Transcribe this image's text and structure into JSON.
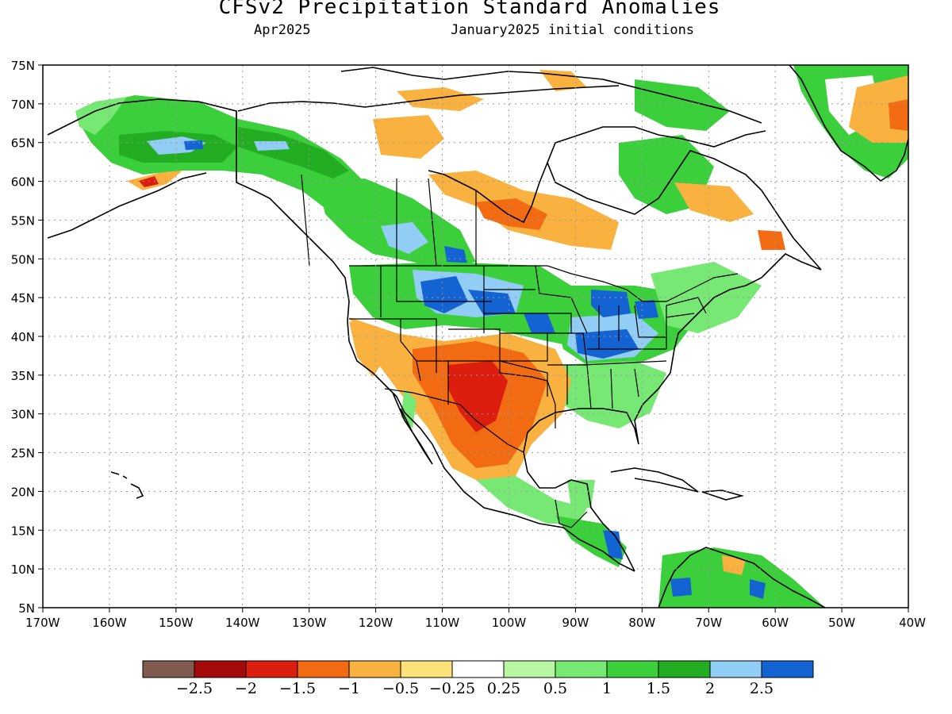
{
  "header": {
    "title": "CFSv2 Precipitation Standard Anomalies",
    "valid_month": "Apr2025",
    "init_conditions": "January2025 initial conditions"
  },
  "map": {
    "lon_range": [
      -170,
      -40
    ],
    "lat_range": [
      5,
      75
    ],
    "lat_ticks": [
      "75N",
      "70N",
      "65N",
      "60N",
      "55N",
      "50N",
      "45N",
      "40N",
      "35N",
      "30N",
      "25N",
      "20N",
      "15N",
      "10N",
      "5N"
    ],
    "lon_ticks": [
      "170W",
      "160W",
      "150W",
      "140W",
      "130W",
      "120W",
      "110W",
      "100W",
      "90W",
      "80W",
      "70W",
      "60W",
      "50W",
      "40W"
    ],
    "gridlines": true
  },
  "colorbar": {
    "colors": [
      "#7f5a4f",
      "#a50a0a",
      "#dc1e0e",
      "#f26a11",
      "#f9b240",
      "#fde27a",
      "#ffffff",
      "#b7f7a3",
      "#77e873",
      "#3ccf3c",
      "#22ad22",
      "#91cdf5",
      "#1463d2"
    ],
    "labels": [
      "−2.5",
      "−2",
      "−1.5",
      "−1",
      "−0.5",
      "−0.25",
      "0.25",
      "0.5",
      "1",
      "1.5",
      "2",
      "2.5"
    ]
  },
  "anomaly_regions": [
    {
      "name": "Alaska interior",
      "value": 1.0,
      "color": "#3ccf3c"
    },
    {
      "name": "Yukon / Northwest Territories",
      "value": 1.0,
      "color": "#3ccf3c"
    },
    {
      "name": "Northern Rockies / Montana",
      "value": 2.5,
      "color": "#1463d2"
    },
    {
      "name": "Ohio Valley",
      "value": 2.5,
      "color": "#1463d2"
    },
    {
      "name": "Great Lakes",
      "value": 2.5,
      "color": "#1463d2"
    },
    {
      "name": "Southwest / New Mexico",
      "value": -1.5,
      "color": "#dc1e0e"
    },
    {
      "name": "Northern Mexico",
      "value": -1.0,
      "color": "#f26a11"
    },
    {
      "name": "Hudson Bay region",
      "value": -1.0,
      "color": "#f26a11"
    },
    {
      "name": "Labrador",
      "value": -0.5,
      "color": "#f9b240"
    },
    {
      "name": "Greenland",
      "value": -0.5,
      "color": "#f9b240"
    },
    {
      "name": "Central America",
      "value": 2.5,
      "color": "#1463d2"
    },
    {
      "name": "Northern South America",
      "value": 1.0,
      "color": "#3ccf3c"
    }
  ]
}
